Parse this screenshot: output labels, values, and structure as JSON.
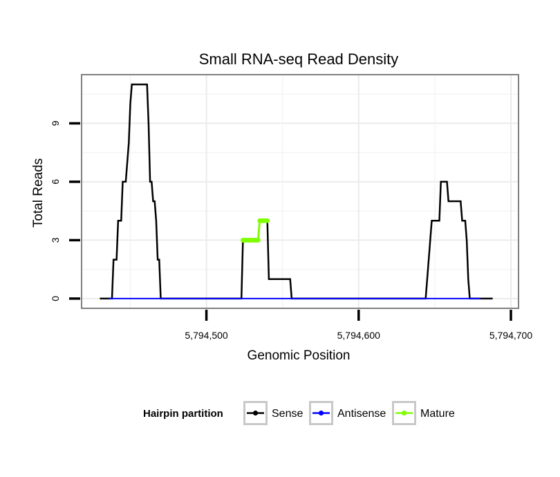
{
  "chart_data": {
    "type": "line",
    "title": "Small RNA-seq Read Density",
    "xlabel": "Genomic Position",
    "ylabel": "Total Reads",
    "xlim": [
      5794418,
      5794705
    ],
    "ylim": [
      -0.5,
      11.5
    ],
    "x_ticks": [
      {
        "value": 5794500,
        "label": "5,794,500"
      },
      {
        "value": 5794600,
        "label": "5,794,600"
      },
      {
        "value": 5794700,
        "label": "5,794,700"
      }
    ],
    "y_ticks": [
      {
        "value": 0,
        "label": "0"
      },
      {
        "value": 3,
        "label": "3"
      },
      {
        "value": 6,
        "label": "6"
      },
      {
        "value": 9,
        "label": "9"
      }
    ],
    "grid": true,
    "legend": {
      "title": "Hairpin partition",
      "position": "bottom",
      "entries": [
        {
          "label": "Sense",
          "color": "#000000"
        },
        {
          "label": "Antisense",
          "color": "#0000ff"
        },
        {
          "label": "Mature",
          "color": "#7fff00"
        }
      ]
    },
    "series": [
      {
        "name": "Sense",
        "color": "#000000",
        "points": [
          [
            5794430,
            0
          ],
          [
            5794438,
            0
          ],
          [
            5794439,
            2
          ],
          [
            5794441,
            2
          ],
          [
            5794442,
            4
          ],
          [
            5794444,
            4
          ],
          [
            5794445,
            6
          ],
          [
            5794447,
            6
          ],
          [
            5794449,
            8
          ],
          [
            5794450,
            10
          ],
          [
            5794451,
            11
          ],
          [
            5794461,
            11
          ],
          [
            5794462,
            9
          ],
          [
            5794463,
            6
          ],
          [
            5794464,
            6
          ],
          [
            5794465,
            5
          ],
          [
            5794466,
            5
          ],
          [
            5794467,
            4
          ],
          [
            5794468,
            2
          ],
          [
            5794469,
            2
          ],
          [
            5794470,
            0
          ],
          [
            5794523,
            0
          ],
          [
            5794524,
            3
          ],
          [
            5794534,
            3
          ],
          [
            5794535,
            4
          ],
          [
            5794540,
            4
          ],
          [
            5794541,
            1
          ],
          [
            5794555,
            1
          ],
          [
            5794556,
            0
          ],
          [
            5794644,
            0
          ],
          [
            5794645,
            1
          ],
          [
            5794646,
            2
          ],
          [
            5794647,
            3
          ],
          [
            5794648,
            4
          ],
          [
            5794653,
            4
          ],
          [
            5794654,
            6
          ],
          [
            5794658,
            6
          ],
          [
            5794659,
            5
          ],
          [
            5794667,
            5
          ],
          [
            5794668,
            4
          ],
          [
            5794670,
            4
          ],
          [
            5794671,
            3
          ],
          [
            5794672,
            1
          ],
          [
            5794673,
            0
          ],
          [
            5794688,
            0
          ]
        ]
      },
      {
        "name": "Antisense",
        "color": "#0000ff",
        "points": [
          [
            5794436,
            0
          ],
          [
            5794680,
            0
          ]
        ]
      },
      {
        "name": "Mature",
        "color": "#7fff00",
        "points": [
          [
            5794524,
            3
          ],
          [
            5794525,
            3
          ],
          [
            5794526,
            3
          ],
          [
            5794527,
            3
          ],
          [
            5794528,
            3
          ],
          [
            5794529,
            3
          ],
          [
            5794530,
            3
          ],
          [
            5794531,
            3
          ],
          [
            5794532,
            3
          ],
          [
            5794533,
            3
          ],
          [
            5794534,
            3
          ],
          [
            5794535,
            4
          ],
          [
            5794536,
            4
          ],
          [
            5794537,
            4
          ],
          [
            5794538,
            4
          ],
          [
            5794539,
            4
          ],
          [
            5794540,
            4
          ]
        ]
      }
    ]
  }
}
